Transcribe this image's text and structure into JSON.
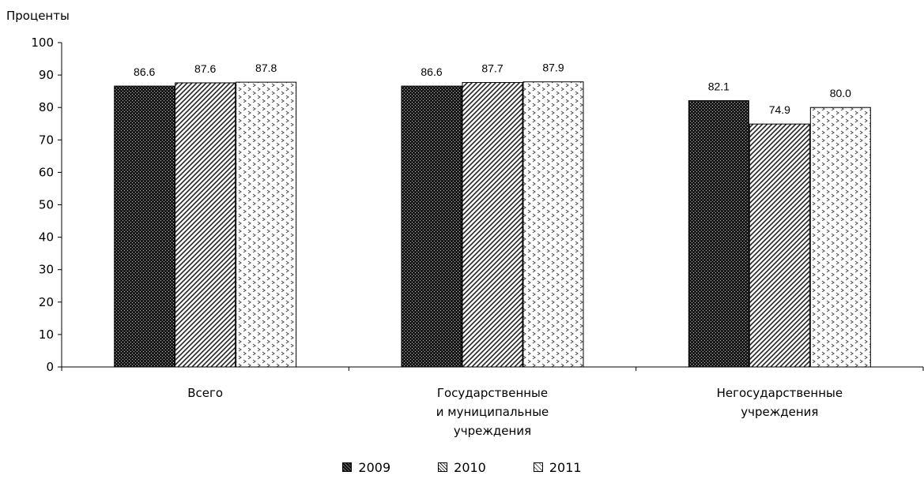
{
  "chart_data": {
    "type": "bar",
    "ylabel": "Проценты",
    "ylim": [
      0,
      100
    ],
    "yticks": [
      "0",
      "10",
      "20",
      "30",
      "40",
      "50",
      "60",
      "70",
      "80",
      "90",
      "100"
    ],
    "categories": [
      [
        "Всего"
      ],
      [
        "Государственные",
        "и муниципальные",
        "учреждения"
      ],
      [
        "Негосударственные",
        "учреждения"
      ]
    ],
    "series": [
      {
        "name": "2009",
        "values": [
          86.6,
          86.6,
          82.1
        ],
        "labels": [
          "86.6",
          "86.6",
          "82.1"
        ],
        "pattern": "dots"
      },
      {
        "name": "2010",
        "values": [
          87.6,
          87.7,
          74.9
        ],
        "labels": [
          "87.6",
          "87.7",
          "74.9"
        ],
        "pattern": "diagonal"
      },
      {
        "name": "2011",
        "values": [
          87.8,
          87.9,
          80.0
        ],
        "labels": [
          "87.8",
          "87.9",
          "80.0"
        ],
        "pattern": "chevrons"
      }
    ],
    "legend_position": "bottom-center",
    "grid": false
  }
}
